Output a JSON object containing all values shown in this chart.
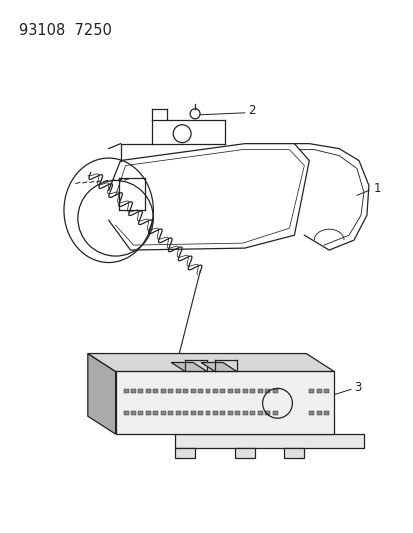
{
  "background_color": "#ffffff",
  "part_number": "93108  7250",
  "line_color": "#222222",
  "label_fontsize": 8.5,
  "part_number_fontsize": 10.5
}
